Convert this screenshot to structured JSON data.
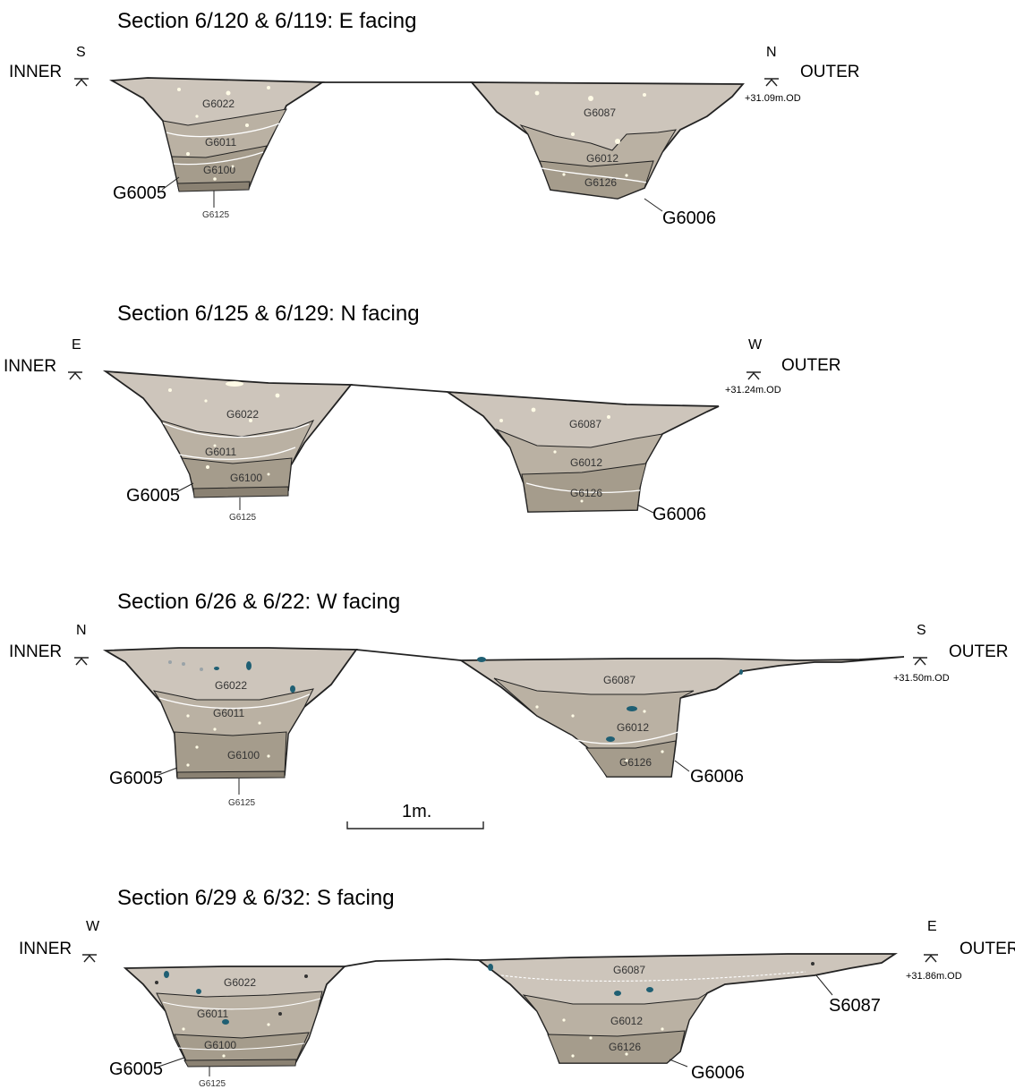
{
  "sections": [
    {
      "title": "Section 6/120 & 6/119: E facing",
      "left_end": "INNER",
      "right_end": "OUTER",
      "left_dir": "S",
      "right_dir": "N",
      "datum": "+31.09m.OD",
      "left_ditch": {
        "label": "G6005",
        "layers": [
          "G6022",
          "G6011",
          "G6100"
        ],
        "base_label": "G6125"
      },
      "right_ditch": {
        "label": "G6006",
        "layers": [
          "G6087",
          "G6012",
          "G6126"
        ]
      }
    },
    {
      "title": "Section 6/125 & 6/129: N facing",
      "left_end": "INNER",
      "right_end": "OUTER",
      "left_dir": "E",
      "right_dir": "W",
      "datum": "+31.24m.OD",
      "left_ditch": {
        "label": "G6005",
        "layers": [
          "G6022",
          "G6011",
          "G6100"
        ],
        "base_label": "G6125"
      },
      "right_ditch": {
        "label": "G6006",
        "layers": [
          "G6087",
          "G6012",
          "G6126"
        ]
      }
    },
    {
      "title": "Section 6/26 & 6/22: W facing",
      "left_end": "INNER",
      "right_end": "OUTER",
      "left_dir": "N",
      "right_dir": "S",
      "datum": "+31.50m.OD",
      "left_ditch": {
        "label": "G6005",
        "layers": [
          "G6022",
          "G6011",
          "G6100"
        ],
        "base_label": "G6125"
      },
      "right_ditch": {
        "label": "G6006",
        "layers": [
          "G6087",
          "G6012",
          "G6126"
        ]
      }
    },
    {
      "title": "Section 6/29 & 6/32: S facing",
      "left_end": "INNER",
      "right_end": "OUTER",
      "left_dir": "W",
      "right_dir": "E",
      "datum": "+31.86m.OD",
      "left_ditch": {
        "label": "G6005",
        "layers": [
          "G6022",
          "G6011",
          "G6100"
        ],
        "base_label": "G6125"
      },
      "right_ditch": {
        "label": "G6006",
        "layers": [
          "G6087",
          "G6012",
          "G6126"
        ]
      },
      "extra_label": "S6087"
    }
  ],
  "scale_bar": {
    "label": "1m."
  },
  "colors": {
    "upper_fill": "#cdc5bb",
    "middle_fill": "#bab1a3",
    "lower_fill": "#a59c8c",
    "base_fill": "#8a8172",
    "inclusion_chalk": "#fffbe6",
    "inclusion_flint": "#1f5f73"
  }
}
